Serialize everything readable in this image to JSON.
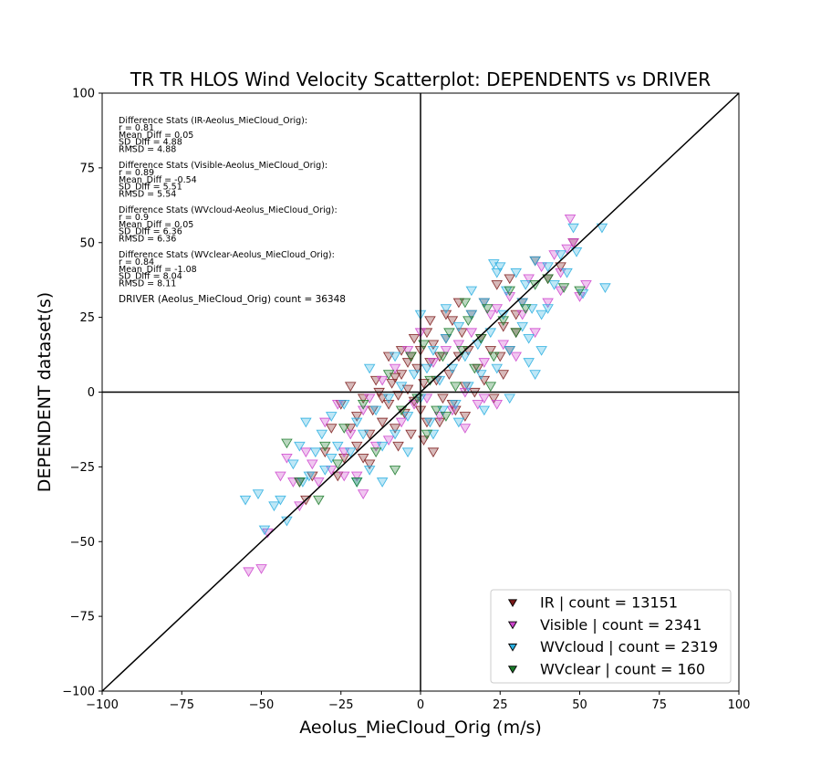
{
  "chart_data": {
    "type": "scatter",
    "title": "TR TR HLOS Wind Velocity Scatterplot: DEPENDENTS vs DRIVER",
    "xlabel": "Aeolus_MieCloud_Orig (m/s)",
    "ylabel": "DEPENDENT dataset(s)",
    "xlim": [
      -100,
      100
    ],
    "ylim": [
      -100,
      100
    ],
    "xticks": [
      -100,
      -75,
      -50,
      -25,
      0,
      25,
      50,
      75,
      100
    ],
    "yticks": [
      -100,
      -75,
      -50,
      -25,
      0,
      25,
      50,
      75,
      100
    ],
    "xtick_labels": [
      "−100",
      "−75",
      "−50",
      "−25",
      "0",
      "25",
      "50",
      "75",
      "100"
    ],
    "ytick_labels": [
      "−100",
      "−75",
      "−50",
      "−25",
      "0",
      "25",
      "50",
      "75",
      "100"
    ],
    "grid": false,
    "marker": "triangle-down",
    "reference_lines": [
      "x = 0",
      "y = 0",
      "y = x"
    ],
    "legend_position": "lower-right",
    "series": [
      {
        "name": "IR",
        "legend": "IR | count = 13151",
        "count": 13151,
        "color": "#7b1a1a",
        "points": [
          [
            -25,
            -4
          ],
          [
            -22,
            -12
          ],
          [
            -20,
            -8
          ],
          [
            -18,
            -2
          ],
          [
            -16,
            -14
          ],
          [
            -15,
            -6
          ],
          [
            -13,
            0
          ],
          [
            -12,
            -10
          ],
          [
            -10,
            -4
          ],
          [
            -9,
            3
          ],
          [
            -8,
            -12
          ],
          [
            -7,
            -1
          ],
          [
            -6,
            6
          ],
          [
            -5,
            -7
          ],
          [
            -4,
            1
          ],
          [
            -3,
            12
          ],
          [
            -2,
            -3
          ],
          [
            -1,
            8
          ],
          [
            0,
            14
          ],
          [
            0,
            -6
          ],
          [
            1,
            3
          ],
          [
            2,
            20
          ],
          [
            2,
            -10
          ],
          [
            3,
            10
          ],
          [
            4,
            16
          ],
          [
            4,
            -20
          ],
          [
            5,
            4
          ],
          [
            6,
            12
          ],
          [
            7,
            -2
          ],
          [
            8,
            18
          ],
          [
            9,
            6
          ],
          [
            10,
            24
          ],
          [
            10,
            -4
          ],
          [
            12,
            12
          ],
          [
            13,
            20
          ],
          [
            14,
            2
          ],
          [
            15,
            14
          ],
          [
            16,
            26
          ],
          [
            18,
            8
          ],
          [
            19,
            18
          ],
          [
            20,
            30
          ],
          [
            22,
            14
          ],
          [
            24,
            36
          ],
          [
            26,
            22
          ],
          [
            28,
            38
          ],
          [
            30,
            20
          ],
          [
            32,
            30
          ],
          [
            36,
            44
          ],
          [
            40,
            38
          ],
          [
            44,
            42
          ],
          [
            48,
            50
          ],
          [
            -30,
            -20
          ],
          [
            -34,
            -28
          ],
          [
            -36,
            -36
          ],
          [
            -38,
            -30
          ],
          [
            -28,
            -12
          ],
          [
            -24,
            -22
          ],
          [
            -20,
            -18
          ],
          [
            -16,
            -24
          ],
          [
            -12,
            -2
          ],
          [
            -8,
            5
          ],
          [
            -4,
            10
          ],
          [
            -3,
            -14
          ],
          [
            1,
            -16
          ],
          [
            6,
            -10
          ],
          [
            11,
            -6
          ],
          [
            14,
            -8
          ],
          [
            17,
            0
          ],
          [
            20,
            4
          ],
          [
            23,
            -2
          ],
          [
            26,
            6
          ],
          [
            -6,
            14
          ],
          [
            -2,
            18
          ],
          [
            3,
            24
          ],
          [
            -10,
            12
          ],
          [
            -14,
            4
          ],
          [
            -18,
            -22
          ],
          [
            -7,
            -18
          ],
          [
            8,
            26
          ],
          [
            12,
            30
          ],
          [
            25,
            12
          ],
          [
            28,
            14
          ],
          [
            30,
            26
          ],
          [
            -22,
            2
          ],
          [
            -26,
            -28
          ]
        ]
      },
      {
        "name": "Visible",
        "legend": "Visible | count = 2341",
        "count": 2341,
        "color": "#cc44cc",
        "points": [
          [
            -54,
            -60
          ],
          [
            -50,
            -59
          ],
          [
            -48,
            -47
          ],
          [
            -40,
            -30
          ],
          [
            -38,
            -38
          ],
          [
            -36,
            -20
          ],
          [
            -34,
            -24
          ],
          [
            -32,
            -30
          ],
          [
            -30,
            -10
          ],
          [
            -28,
            -26
          ],
          [
            -26,
            -4
          ],
          [
            -24,
            -20
          ],
          [
            -22,
            -14
          ],
          [
            -20,
            -28
          ],
          [
            -18,
            -6
          ],
          [
            -16,
            -2
          ],
          [
            -14,
            -18
          ],
          [
            -12,
            4
          ],
          [
            -10,
            -16
          ],
          [
            -8,
            8
          ],
          [
            -6,
            -10
          ],
          [
            -4,
            14
          ],
          [
            -2,
            -4
          ],
          [
            0,
            20
          ],
          [
            2,
            -2
          ],
          [
            4,
            10
          ],
          [
            6,
            -8
          ],
          [
            8,
            14
          ],
          [
            10,
            -6
          ],
          [
            12,
            16
          ],
          [
            14,
            0
          ],
          [
            16,
            20
          ],
          [
            18,
            -4
          ],
          [
            20,
            10
          ],
          [
            22,
            26
          ],
          [
            24,
            -4
          ],
          [
            26,
            16
          ],
          [
            28,
            32
          ],
          [
            30,
            12
          ],
          [
            32,
            26
          ],
          [
            34,
            38
          ],
          [
            36,
            20
          ],
          [
            38,
            42
          ],
          [
            40,
            30
          ],
          [
            42,
            46
          ],
          [
            44,
            34
          ],
          [
            46,
            48
          ],
          [
            47,
            58
          ],
          [
            50,
            32
          ],
          [
            52,
            36
          ],
          [
            -44,
            -28
          ],
          [
            -42,
            -22
          ],
          [
            -24,
            -28
          ],
          [
            -18,
            -34
          ],
          [
            14,
            -12
          ],
          [
            20,
            -2
          ],
          [
            24,
            28
          ],
          [
            44,
            40
          ],
          [
            48,
            50
          ]
        ]
      },
      {
        "name": "WVcloud",
        "legend": "WVcloud | count = 2319",
        "count": 2319,
        "color": "#29aee0",
        "points": [
          [
            -55,
            -36
          ],
          [
            -51,
            -34
          ],
          [
            -49,
            -46
          ],
          [
            -42,
            -43
          ],
          [
            -40,
            -24
          ],
          [
            -38,
            -18
          ],
          [
            -37,
            -30
          ],
          [
            -35,
            -28
          ],
          [
            -33,
            -20
          ],
          [
            -31,
            -14
          ],
          [
            -30,
            -26
          ],
          [
            -28,
            -8
          ],
          [
            -26,
            -18
          ],
          [
            -24,
            -4
          ],
          [
            -22,
            -20
          ],
          [
            -20,
            -10
          ],
          [
            -18,
            -14
          ],
          [
            -16,
            -26
          ],
          [
            -14,
            -6
          ],
          [
            -12,
            -18
          ],
          [
            -10,
            -2
          ],
          [
            -8,
            -14
          ],
          [
            -6,
            2
          ],
          [
            -4,
            -8
          ],
          [
            -2,
            6
          ],
          [
            0,
            -2
          ],
          [
            2,
            8
          ],
          [
            3,
            -10
          ],
          [
            4,
            14
          ],
          [
            6,
            4
          ],
          [
            7,
            -6
          ],
          [
            8,
            18
          ],
          [
            10,
            8
          ],
          [
            11,
            -4
          ],
          [
            12,
            22
          ],
          [
            14,
            12
          ],
          [
            15,
            2
          ],
          [
            16,
            26
          ],
          [
            18,
            16
          ],
          [
            19,
            6
          ],
          [
            20,
            30
          ],
          [
            22,
            20
          ],
          [
            23,
            43
          ],
          [
            24,
            8
          ],
          [
            25,
            42
          ],
          [
            26,
            26
          ],
          [
            27,
            34
          ],
          [
            28,
            14
          ],
          [
            30,
            40
          ],
          [
            32,
            22
          ],
          [
            33,
            36
          ],
          [
            34,
            18
          ],
          [
            35,
            28
          ],
          [
            36,
            44
          ],
          [
            38,
            26
          ],
          [
            40,
            42
          ],
          [
            42,
            36
          ],
          [
            44,
            46
          ],
          [
            46,
            40
          ],
          [
            48,
            55
          ],
          [
            49,
            47
          ],
          [
            51,
            33
          ],
          [
            58,
            35
          ],
          [
            57,
            55
          ],
          [
            -44,
            -36
          ],
          [
            -46,
            -38
          ],
          [
            -36,
            -10
          ],
          [
            -28,
            -22
          ],
          [
            -20,
            -30
          ],
          [
            -12,
            -30
          ],
          [
            -4,
            -20
          ],
          [
            4,
            -14
          ],
          [
            12,
            -10
          ],
          [
            20,
            -6
          ],
          [
            28,
            -2
          ],
          [
            36,
            6
          ],
          [
            -16,
            8
          ],
          [
            -8,
            12
          ],
          [
            0,
            26
          ],
          [
            8,
            28
          ],
          [
            16,
            34
          ],
          [
            24,
            40
          ],
          [
            32,
            30
          ],
          [
            40,
            28
          ],
          [
            34,
            10
          ],
          [
            38,
            14
          ]
        ]
      },
      {
        "name": "WVclear",
        "legend": "WVclear | count = 160",
        "count": 160,
        "color": "#1a7a2a",
        "points": [
          [
            -42,
            -17
          ],
          [
            -38,
            -30
          ],
          [
            -30,
            -18
          ],
          [
            -24,
            -12
          ],
          [
            -18,
            -4
          ],
          [
            -14,
            -20
          ],
          [
            -10,
            6
          ],
          [
            -6,
            -6
          ],
          [
            -3,
            12
          ],
          [
            -1,
            -2
          ],
          [
            1,
            16
          ],
          [
            3,
            4
          ],
          [
            5,
            -6
          ],
          [
            7,
            12
          ],
          [
            9,
            20
          ],
          [
            11,
            2
          ],
          [
            13,
            14
          ],
          [
            15,
            24
          ],
          [
            17,
            8
          ],
          [
            19,
            18
          ],
          [
            21,
            28
          ],
          [
            23,
            12
          ],
          [
            26,
            24
          ],
          [
            28,
            34
          ],
          [
            30,
            20
          ],
          [
            33,
            28
          ],
          [
            36,
            36
          ],
          [
            40,
            38
          ],
          [
            45,
            35
          ],
          [
            50,
            34
          ],
          [
            -8,
            -26
          ],
          [
            2,
            -14
          ],
          [
            -20,
            -30
          ],
          [
            8,
            -8
          ],
          [
            14,
            30
          ],
          [
            22,
            2
          ],
          [
            -26,
            -24
          ],
          [
            -32,
            -36
          ]
        ]
      }
    ],
    "stats": [
      {
        "heading": "Difference Stats (IR-Aeolus_MieCloud_Orig):",
        "r": "r = 0.81",
        "mean_diff": "Mean_Diff = 0.05",
        "sd_diff": "SD_Diff = 4.88",
        "rmsd": "RMSD = 4.88"
      },
      {
        "heading": "Difference Stats (Visible-Aeolus_MieCloud_Orig):",
        "r": "r = 0.89",
        "mean_diff": "Mean_Diff = -0.54",
        "sd_diff": "SD_Diff = 5.51",
        "rmsd": "RMSD = 5.54"
      },
      {
        "heading": "Difference Stats (WVcloud-Aeolus_MieCloud_Orig):",
        "r": "r = 0.9",
        "mean_diff": "Mean_Diff = 0.05",
        "sd_diff": "SD_Diff = 6.36",
        "rmsd": "RMSD = 6.36"
      },
      {
        "heading": "Difference Stats (WVclear-Aeolus_MieCloud_Orig):",
        "r": "r = 0.84",
        "mean_diff": "Mean_Diff = -1.08",
        "sd_diff": "SD_Diff = 8.04",
        "rmsd": "RMSD = 8.11"
      }
    ],
    "driver_count": "DRIVER (Aeolus_MieCloud_Orig) count = 36348"
  }
}
